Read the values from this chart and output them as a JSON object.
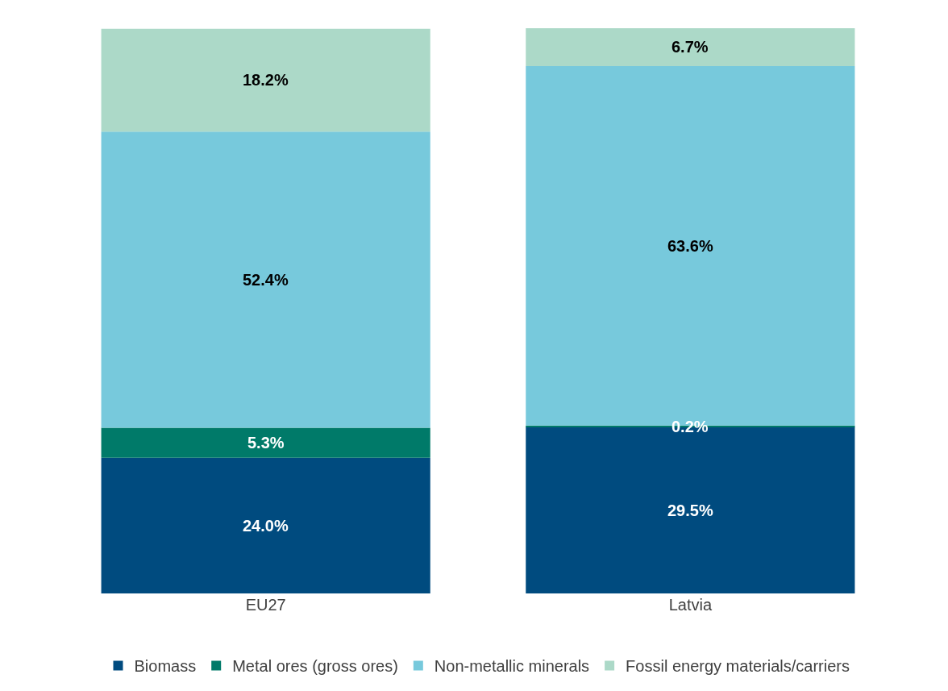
{
  "chart_data": {
    "type": "bar",
    "stacked": true,
    "categories": [
      "EU27",
      "Latvia"
    ],
    "series": [
      {
        "name": "Biomass",
        "color": "#004b7f",
        "values": [
          24.0,
          29.5
        ],
        "value_labels": [
          "24.0%",
          "29.5%"
        ]
      },
      {
        "name": "Metal ores (gross ores)",
        "color": "#007a69",
        "values": [
          5.3,
          0.2
        ],
        "value_labels": [
          "5.3%",
          "0.2%"
        ]
      },
      {
        "name": "Non-metallic minerals",
        "color": "#77c9dc",
        "values": [
          52.4,
          63.6
        ],
        "value_labels": [
          "52.4%",
          "63.6%"
        ]
      },
      {
        "name": "Fossil energy materials/carriers",
        "color": "#acd9c8",
        "values": [
          18.2,
          6.7
        ],
        "value_labels": [
          "18.2%",
          "6.7%"
        ]
      }
    ],
    "legend": "bottom"
  }
}
